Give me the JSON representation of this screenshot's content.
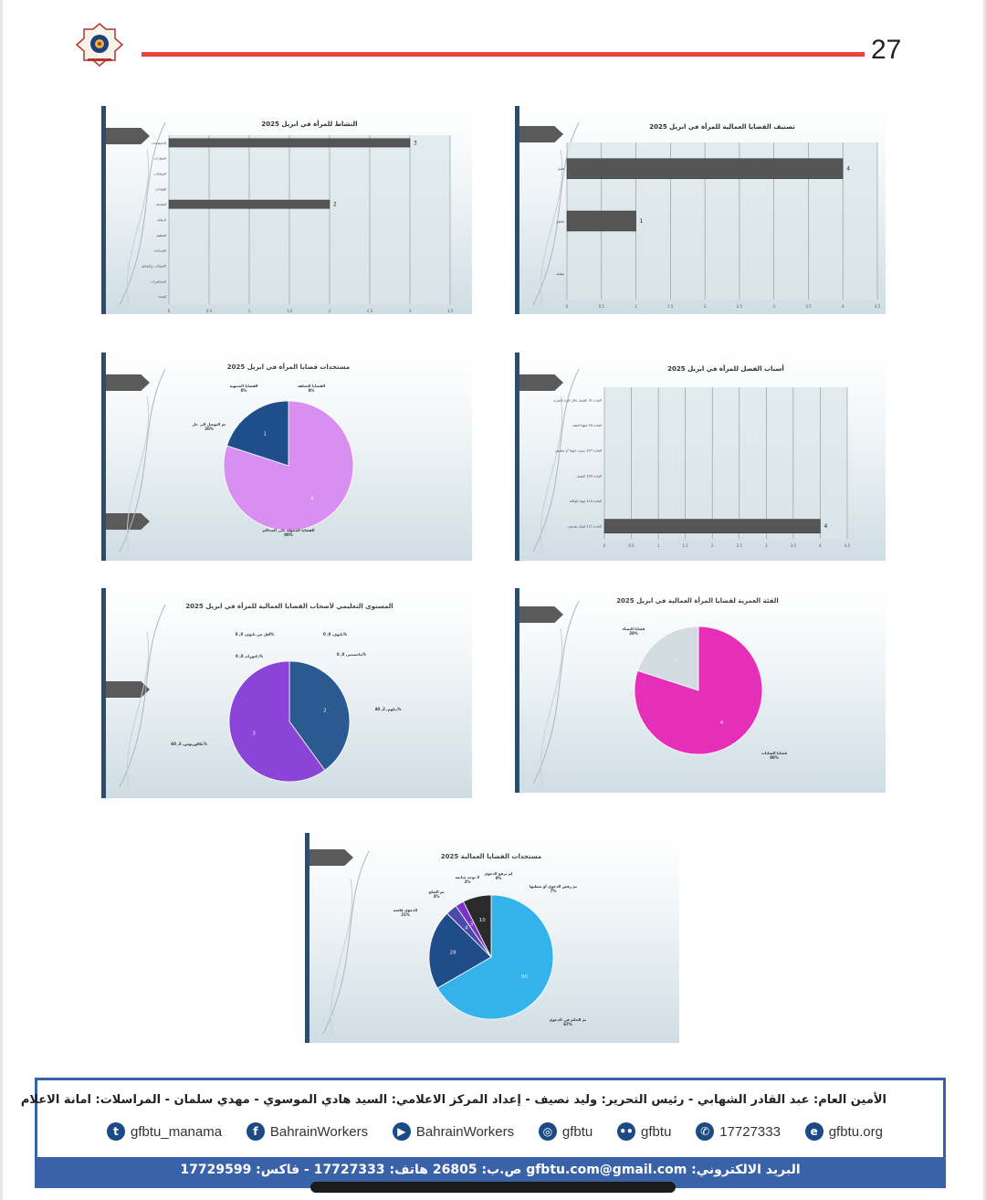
{
  "header": {
    "page_number": "27",
    "accent_color": "#e8463c"
  },
  "chart_data": [
    {
      "type": "bar",
      "orientation": "horizontal",
      "title": "النشاط للمرأة في ابريل 2025",
      "categories": [
        "الاجتماعات",
        "الحوارات",
        "المقابلات",
        "اللقاءات",
        "المتابعة",
        "الرقابة",
        "التنظيم",
        "المساندة",
        "الاتصالات والتعامل",
        "المحاضرات",
        "البحث"
      ],
      "values": [
        3,
        0,
        0,
        0,
        2,
        0,
        0,
        0,
        0,
        0,
        0
      ],
      "data_labels": [
        "3",
        "",
        "",
        "",
        "2",
        "",
        "",
        "",
        "",
        "",
        ""
      ],
      "xlim": [
        0,
        3.5
      ],
      "xticks": [
        "0",
        "0.5",
        "1",
        "1.5",
        "2",
        "2.5",
        "3",
        "3.5"
      ],
      "grid": true,
      "bar_color": "#555555"
    },
    {
      "type": "bar",
      "orientation": "horizontal",
      "title": "تصنيف القضايا العمالية للمرأة في ابريل 2025",
      "categories": [
        "فصل",
        "مقتول",
        "توقيف"
      ],
      "values": [
        4,
        1,
        0
      ],
      "data_labels": [
        "4",
        "1",
        ""
      ],
      "xlim": [
        0,
        4.5
      ],
      "xticks": [
        "0",
        "0.5",
        "1",
        "1.5",
        "2",
        "2.5",
        "3",
        "3.5",
        "4",
        "4.5"
      ],
      "grid": true,
      "bar_color": "#555555"
    },
    {
      "type": "pie",
      "title": "مستجدات قضايا المرأة في ابريل 2025",
      "slices": [
        {
          "label": "القضايا المحولة على المحاكم",
          "percent": "80%",
          "value": 4,
          "color": "#d98ef2"
        },
        {
          "label": "تم التوصل الى حل",
          "percent": "20%",
          "value": 1,
          "color": "#1f4e8c"
        },
        {
          "label": "القضايا المنتهية",
          "percent": "0%",
          "value": 0,
          "color": "#888888"
        },
        {
          "label": "القضايا المعلقة",
          "percent": "0%",
          "value": 0,
          "color": "#888888"
        }
      ]
    },
    {
      "type": "bar",
      "orientation": "horizontal",
      "title": "أسباب الفصل للمرأة في ابريل 2025",
      "categories": [
        "المادة 31 الفصل خلال فترة التجربة",
        "المادة 99 انتهاء العقد",
        "المادة 107 بسبب انتهاء أو تخفيض",
        "المادة 109 الفصل",
        "المادة 110 إنهاء الوكالة",
        "المادة 111 فصل تعسفي"
      ],
      "values": [
        0,
        0,
        0,
        0,
        0,
        4
      ],
      "data_labels": [
        "",
        "",
        "",
        "",
        "",
        "4"
      ],
      "xlim": [
        0,
        4.5
      ],
      "xticks": [
        "0",
        "0.5",
        "1",
        "1.5",
        "2",
        "2.5",
        "3",
        "3.5",
        "4",
        "4.5"
      ],
      "grid": true,
      "bar_color": "#555555"
    },
    {
      "type": "pie",
      "title": "المستوى التعليمي لأصحاب القضايا العمالية للمرأة في ابريل 2025",
      "slices": [
        {
          "label": "دبلوم, 2, 40%",
          "value": 2,
          "color": "#2a5a8f"
        },
        {
          "label": "بكالوريوس, 3, 60%",
          "value": 3,
          "color": "#8a45d6"
        },
        {
          "label": "ثانوي, 0, 0%",
          "value": 0,
          "color": "#888888"
        },
        {
          "label": "ماجستير, 0, 0%",
          "value": 0,
          "color": "#888888"
        },
        {
          "label": "أقل من ثانوي, 0, 0%",
          "value": 0,
          "color": "#888888"
        },
        {
          "label": "دكتوراه, 0, 0%",
          "value": 0,
          "color": "#888888"
        }
      ]
    },
    {
      "type": "pie",
      "title": "الفئة العمرية لقضايا المرأة العمالية في ابريل 2025",
      "slices": [
        {
          "label": "قضايا الشابات",
          "percent": "80%",
          "value": 4,
          "color": "#e52fb8"
        },
        {
          "label": "قضايا النساء",
          "percent": "20%",
          "value": 1,
          "color": "#d3dce1"
        }
      ]
    },
    {
      "type": "pie",
      "title": "مستجدات القضايا العمالية 2025",
      "slices": [
        {
          "label": "تم الحكم في الدعوى",
          "percent": "67%",
          "value": 90,
          "color": "#33b3ea"
        },
        {
          "label": "الدعوى قائمة",
          "percent": "21%",
          "value": 28,
          "color": "#214c8a"
        },
        {
          "label": "تم الصلح",
          "percent": "3%",
          "value": 4,
          "color": "#4a4aa8"
        },
        {
          "label": "لا توجد متابعة",
          "percent": "2%",
          "value": 3,
          "color": "#7a32c8"
        },
        {
          "label": "لم ترفع الدعوى",
          "percent": "0%",
          "value": 0,
          "color": "#b46fe0"
        },
        {
          "label": "تم رفض الدعوى أو شطبها",
          "percent": "7%",
          "value": 10,
          "color": "#2a2a2a"
        }
      ]
    }
  ],
  "footer": {
    "credits": "الأمين العام: عبد القادر الشهابي - رئيس التحرير: وليد نصيف - إعداد المركز الاعلامي: السيد هادي الموسوي - مهدي سلمان - المراسلات: امانة الاعلام",
    "social": [
      {
        "icon": "twitter-icon",
        "glyph": "t",
        "label": "gfbtu_manama"
      },
      {
        "icon": "facebook-icon",
        "glyph": "f",
        "label": "BahrainWorkers"
      },
      {
        "icon": "youtube-icon",
        "glyph": "▶",
        "label": "BahrainWorkers"
      },
      {
        "icon": "instagram-icon",
        "glyph": "◎",
        "label": "gfbtu"
      },
      {
        "icon": "flickr-icon",
        "glyph": "••",
        "label": "gfbtu"
      },
      {
        "icon": "whatsapp-icon",
        "glyph": "✆",
        "label": "17727333"
      },
      {
        "icon": "web-icon",
        "glyph": "e",
        "label": "gfbtu.org"
      }
    ],
    "contact": "البريد الالكتروني: gfbtu.com@gmail.com   ص.ب: 26805   هاتف: 17727333 - فاكس: 17729599",
    "band_color": "#3a62a8"
  }
}
